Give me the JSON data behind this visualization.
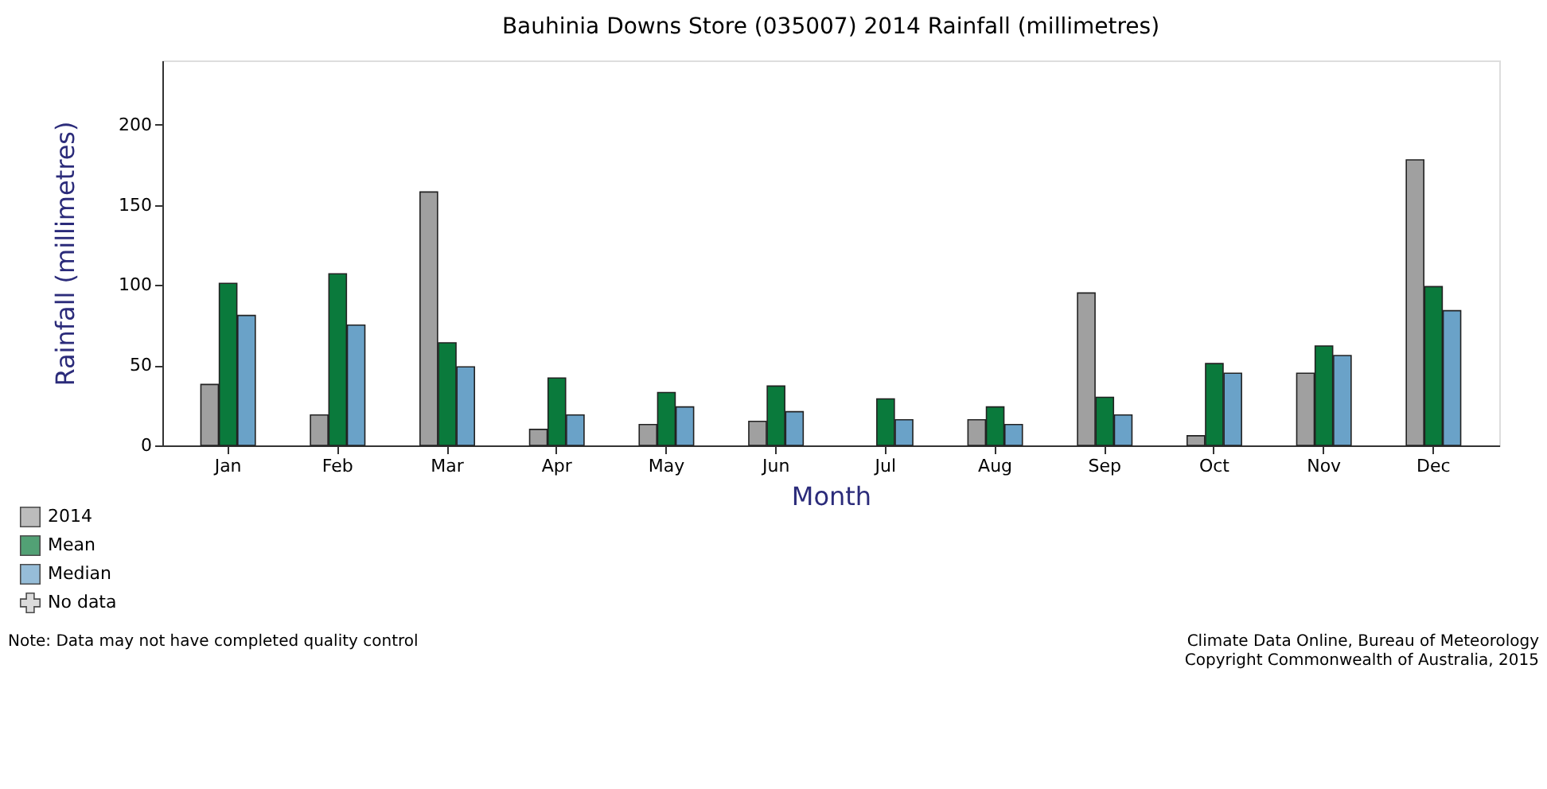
{
  "chart_data": {
    "type": "bar",
    "title": "Bauhinia Downs Store (035007) 2014 Rainfall (millimetres)",
    "xlabel": "Month",
    "ylabel": "Rainfall (millimetres)",
    "categories": [
      "Jan",
      "Feb",
      "Mar",
      "Apr",
      "May",
      "Jun",
      "Jul",
      "Aug",
      "Sep",
      "Oct",
      "Nov",
      "Dec"
    ],
    "series": [
      {
        "name": "2014",
        "color": "#a0a0a0",
        "values": [
          38,
          19,
          158,
          10,
          13,
          15,
          null,
          16,
          95,
          6,
          45,
          178
        ]
      },
      {
        "name": "Mean",
        "color": "#0a7a3c",
        "values": [
          101,
          107,
          64,
          42,
          33,
          37,
          29,
          24,
          30,
          51,
          62,
          99
        ]
      },
      {
        "name": "Median",
        "color": "#6aa2c8",
        "values": [
          81,
          75,
          49,
          19,
          24,
          21,
          16,
          13,
          19,
          45,
          56,
          84
        ]
      },
      {
        "name": "No data",
        "type": "scatter",
        "marker": "cross",
        "color": "#cccccc",
        "values": [
          null,
          null,
          null,
          null,
          null,
          null,
          null,
          null,
          null,
          null,
          null,
          null
        ]
      }
    ],
    "ylim": [
      0,
      240
    ],
    "yticks": [
      0,
      50,
      100,
      150,
      200
    ],
    "grid": false,
    "legend": "bottom left",
    "annotations": [
      "Note: Data may not have completed quality control",
      "Climate Data Online, Bureau of Meteorology\nCopyright Commonwealth of Australia, 2015"
    ]
  }
}
